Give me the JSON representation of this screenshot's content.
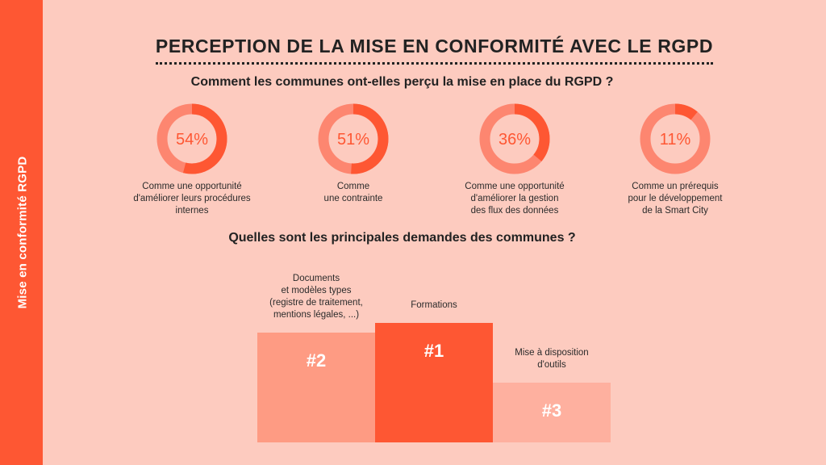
{
  "sidebar": {
    "label": "Mise en conformité RGPD"
  },
  "title": "PERCEPTION DE LA MISE EN CONFORMITÉ AVEC LE RGPD",
  "question1": "Comment les communes ont-elles perçu la mise en place du RGPD ?",
  "question2": "Quelles sont les principales demandes des communes ?",
  "colors": {
    "background": "#fdcbbf",
    "accent": "#fe5733",
    "ring": "#fd8670",
    "bar2": "#fe9b83",
    "bar3": "#feb09f"
  },
  "chart_data": [
    {
      "type": "pie",
      "subtype": "donut",
      "items": [
        {
          "value": 54,
          "pct_label": "54%",
          "caption": [
            "Comme une opportunité",
            "d'améliorer leurs procédures",
            "internes"
          ]
        },
        {
          "value": 51,
          "pct_label": "51%",
          "caption": [
            "Comme",
            "une contrainte"
          ]
        },
        {
          "value": 36,
          "pct_label": "36%",
          "caption": [
            "Comme une opportunité",
            "d'améliorer la gestion",
            "des flux des données"
          ]
        },
        {
          "value": 11,
          "pct_label": "11%",
          "caption": [
            "Comme un prérequis",
            "pour le développement",
            "de la Smart City"
          ]
        }
      ]
    },
    {
      "type": "bar",
      "subtype": "podium",
      "categories": [
        "Documents et modèles types (registre de traitement, mentions légales, ...)",
        "Formations",
        "Mise à disposition d'outils"
      ],
      "ranks": [
        "#2",
        "#1",
        "#3"
      ],
      "rank_values": [
        2,
        1,
        3
      ],
      "captions": [
        [
          "Documents",
          "et modèles types",
          "(registre de traitement,",
          "mentions légales, ...)"
        ],
        [
          "Formations"
        ],
        [
          "Mise à disposition",
          "d'outils"
        ]
      ]
    }
  ]
}
